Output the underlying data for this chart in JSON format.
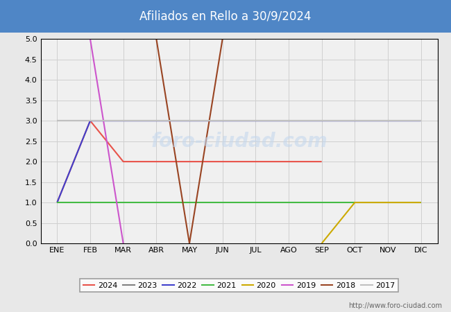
{
  "title": "Afiliados en Rello a 30/9/2024",
  "title_bg_color": "#4f86c6",
  "title_text_color": "white",
  "ylim": [
    0.0,
    5.0
  ],
  "yticks": [
    0.0,
    0.5,
    1.0,
    1.5,
    2.0,
    2.5,
    3.0,
    3.5,
    4.0,
    4.5,
    5.0
  ],
  "months": [
    "ENE",
    "FEB",
    "MAR",
    "ABR",
    "MAY",
    "JUN",
    "JUL",
    "AGO",
    "SEP",
    "OCT",
    "NOV",
    "DIC"
  ],
  "url": "http://www.foro-ciudad.com",
  "series": {
    "2024": {
      "color": "#e8534a",
      "x": [
        1,
        2,
        3,
        4,
        5,
        6,
        7,
        8,
        9
      ],
      "y": [
        1,
        3,
        2,
        2,
        2,
        2,
        2,
        2,
        2
      ]
    },
    "2023": {
      "color": "#808080",
      "x": [
        1,
        2,
        3,
        4,
        5,
        6,
        7,
        8,
        9,
        10,
        11,
        12
      ],
      "y": [
        3,
        3,
        3,
        3,
        3,
        3,
        3,
        3,
        3,
        3,
        3,
        3
      ]
    },
    "2022": {
      "color": "#4040cc",
      "x": [
        1,
        2,
        3,
        4,
        5,
        6,
        7,
        8,
        9,
        10,
        11,
        12
      ],
      "y": [
        1,
        3,
        3,
        3,
        3,
        3,
        3,
        3,
        3,
        3,
        3,
        3
      ]
    },
    "2021": {
      "color": "#44bb44",
      "x": [
        1,
        2,
        3,
        4,
        5,
        6,
        7,
        8,
        9,
        10,
        11,
        12
      ],
      "y": [
        1,
        1,
        1,
        1,
        1,
        1,
        1,
        1,
        1,
        1,
        1,
        1
      ]
    },
    "2020": {
      "color": "#ccaa00",
      "x": [
        9,
        10,
        11,
        12
      ],
      "y": [
        0,
        1,
        1,
        1
      ]
    },
    "2019": {
      "color": "#cc55cc",
      "x": [
        2,
        3
      ],
      "y": [
        5,
        0
      ]
    },
    "2018": {
      "color": "#994422",
      "x": [
        4,
        5,
        6
      ],
      "y": [
        5,
        0,
        5
      ]
    },
    "2017": {
      "color": "#c0c0c0",
      "x": [
        1,
        2,
        3,
        4,
        5,
        6,
        7,
        8,
        9,
        10,
        11,
        12
      ],
      "y": [
        3,
        3,
        3,
        3,
        3,
        3,
        3,
        3,
        3,
        3,
        3,
        3
      ]
    }
  },
  "legend_order": [
    "2024",
    "2023",
    "2022",
    "2021",
    "2020",
    "2019",
    "2018",
    "2017"
  ],
  "fig_bg_color": "#e8e8e8",
  "plot_bg_color": "#f0f0f0",
  "grid_color": "#d0d0d0",
  "border_color": "#000000"
}
